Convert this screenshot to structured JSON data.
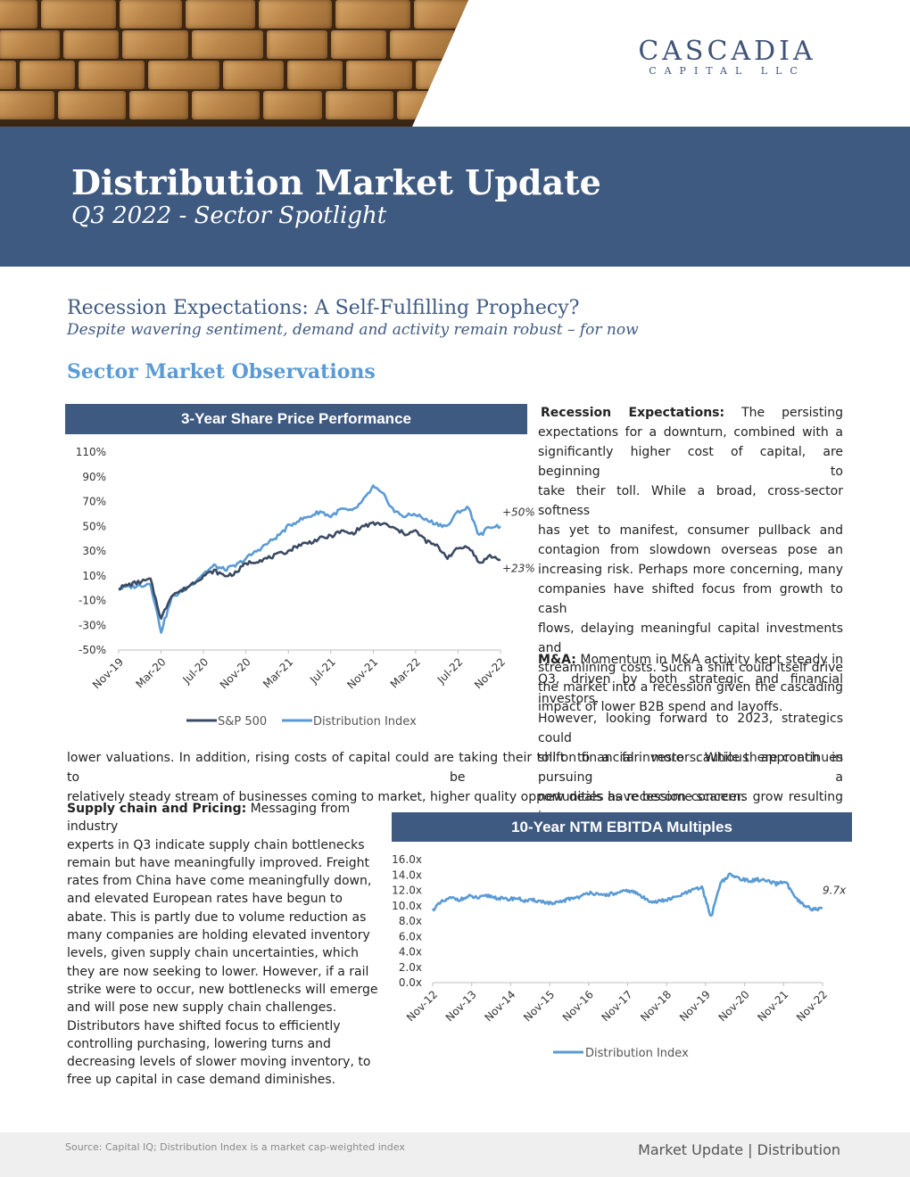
{
  "header": {
    "logo_line1": "CASCADIA",
    "logo_line2": "CAPITAL LLC",
    "title": "Distribution Market Update",
    "subtitle": "Q3 2022 - Sector Spotlight"
  },
  "intro": {
    "headline": "Recession Expectations:  A Self-Fulfilling Prophecy?",
    "subheadline": "Despite wavering sentiment, demand and activity remain robust – for now",
    "section_title": "Sector Market Observations"
  },
  "paragraphs": {
    "recession_label": "Recession Expectations:",
    "recession_lines": [
      "The persisting",
      "expectations for a downturn, combined with a",
      "significantly higher cost of capital, are beginning to",
      "take their toll. While a broad, cross-sector softness",
      "has yet to manifest, consumer pullback and",
      "contagion from slowdown overseas pose an",
      "increasing risk. Perhaps more concerning, many",
      "companies have shifted focus from growth to cash",
      "flows, delaying meaningful capital investments and",
      "streamlining costs. Such a shift could itself drive",
      "the market into a recession given the cascading",
      "impact of lower B2B spend and layoffs."
    ],
    "ma_label": "M&A:",
    "ma_lines": [
      "Momentum in M&A activity kept steady in",
      "Q3, driven by both strategic and financial investors.",
      "However, looking forward to 2023, strategics could",
      "shift to a far more cautious approach in pursuing",
      "new deals as recession concerns grow resulting in"
    ],
    "ma_full_lines": [
      "lower valuations. In addition, rising costs of capital could are taking their toll on financial investors. While there continues to be a",
      "relatively steady stream of businesses coming to market, higher quality opportunities have become scarcer."
    ],
    "supply_label": "Supply chain and Pricing:",
    "supply_lines": [
      "Messaging from industry",
      "experts in Q3 indicate supply chain bottlenecks",
      "remain but have meaningfully improved. Freight",
      "rates from China have come meaningfully down,",
      "and elevated European rates have begun to",
      "abate. This is partly due to volume reduction as",
      "many companies are holding elevated inventory",
      "levels, given supply chain uncertainties, which",
      "they are now seeking to lower. However, if a rail",
      "strike were to occur, new bottlenecks will emerge",
      "and will pose new supply chain challenges.",
      "Distributors have shifted focus to efficiently",
      "controlling purchasing, lowering turns and",
      "decreasing levels of slower moving inventory, to",
      "free up capital in case demand diminishes."
    ]
  },
  "chart_data": [
    {
      "type": "line",
      "title": "3-Year Share Price Performance",
      "ylim": [
        -50,
        110
      ],
      "y_ticks": [
        "110%",
        "90%",
        "70%",
        "50%",
        "30%",
        "10%",
        "-10%",
        "-30%",
        "-50%"
      ],
      "x_ticks": [
        "Nov-19",
        "Mar-20",
        "Jul-20",
        "Nov-20",
        "Mar-21",
        "Jul-21",
        "Nov-21",
        "Mar-22",
        "Jul-22",
        "Nov-22"
      ],
      "legend": "bottom",
      "annotations": [
        "+50%",
        "+23%"
      ],
      "x": [
        "Nov-19",
        "Dec-19",
        "Jan-20",
        "Feb-20",
        "Mar-20",
        "Apr-20",
        "May-20",
        "Jun-20",
        "Jul-20",
        "Aug-20",
        "Sep-20",
        "Oct-20",
        "Nov-20",
        "Dec-20",
        "Jan-21",
        "Feb-21",
        "Mar-21",
        "Apr-21",
        "May-21",
        "Jun-21",
        "Jul-21",
        "Aug-21",
        "Sep-21",
        "Oct-21",
        "Nov-21",
        "Dec-21",
        "Jan-22",
        "Feb-22",
        "Mar-22",
        "Apr-22",
        "May-22",
        "Jun-22",
        "Jul-22",
        "Aug-22",
        "Sep-22",
        "Oct-22",
        "Nov-22"
      ],
      "series": [
        {
          "name": "S&P 500",
          "color": "#3b4a63",
          "values": [
            0,
            3,
            5,
            7,
            -25,
            -5,
            -2,
            4,
            10,
            14,
            10,
            12,
            20,
            22,
            24,
            27,
            30,
            35,
            37,
            40,
            42,
            46,
            44,
            50,
            52,
            52,
            48,
            44,
            46,
            38,
            34,
            25,
            32,
            34,
            20,
            26,
            23
          ]
        },
        {
          "name": "Distribution Index",
          "color": "#5b9bd5",
          "values": [
            0,
            1,
            2,
            4,
            -35,
            -8,
            -2,
            4,
            12,
            18,
            15,
            18,
            24,
            30,
            36,
            42,
            50,
            55,
            58,
            62,
            58,
            64,
            62,
            70,
            82,
            75,
            62,
            58,
            60,
            55,
            52,
            50,
            62,
            65,
            42,
            50,
            50
          ]
        }
      ]
    },
    {
      "type": "line",
      "title": "10-Year NTM EBITDA Multiples",
      "ylim": [
        0,
        16
      ],
      "y_ticks": [
        "16.0x",
        "14.0x",
        "12.0x",
        "10.0x",
        "8.0x",
        "6.0x",
        "4.0x",
        "2.0x",
        "0.0x"
      ],
      "x_ticks": [
        "Nov-12",
        "Nov-13",
        "Nov-14",
        "Nov-15",
        "Nov-16",
        "Nov-17",
        "Nov-18",
        "Nov-19",
        "Nov-20",
        "Nov-21",
        "Nov-22"
      ],
      "legend": "bottom",
      "annotations": [
        "9.7x"
      ],
      "x": [
        "Nov-12",
        "Feb-13",
        "May-13",
        "Aug-13",
        "Nov-13",
        "Feb-14",
        "May-14",
        "Aug-14",
        "Nov-14",
        "Feb-15",
        "May-15",
        "Aug-15",
        "Nov-15",
        "Feb-16",
        "May-16",
        "Aug-16",
        "Nov-16",
        "Feb-17",
        "May-17",
        "Aug-17",
        "Nov-17",
        "Feb-18",
        "May-18",
        "Aug-18",
        "Nov-18",
        "Feb-19",
        "May-19",
        "Aug-19",
        "Nov-19",
        "Feb-20",
        "Mar-20",
        "May-20",
        "Aug-20",
        "Nov-20",
        "Feb-21",
        "May-21",
        "Aug-21",
        "Nov-21",
        "Feb-22",
        "May-22",
        "Aug-22",
        "Sep-22",
        "Nov-22"
      ],
      "series": [
        {
          "name": "Distribution Index",
          "color": "#5b9bd5",
          "values": [
            9.5,
            10.5,
            11.0,
            10.8,
            11.2,
            11.0,
            11.3,
            11.0,
            10.8,
            11.0,
            10.6,
            10.7,
            10.5,
            10.2,
            10.6,
            11.0,
            11.2,
            11.8,
            11.3,
            11.5,
            11.6,
            12.0,
            11.6,
            10.8,
            10.5,
            10.7,
            11.0,
            11.5,
            12.0,
            12.4,
            8.5,
            13.0,
            14.0,
            13.6,
            13.2,
            13.4,
            13.2,
            12.8,
            13.2,
            11.0,
            10.0,
            9.5,
            9.7
          ]
        }
      ]
    }
  ],
  "footer": {
    "source": "Source: Capital IQ; Distribution Index is a market cap-weighted index",
    "market_update": "Market Update | Distribution"
  }
}
